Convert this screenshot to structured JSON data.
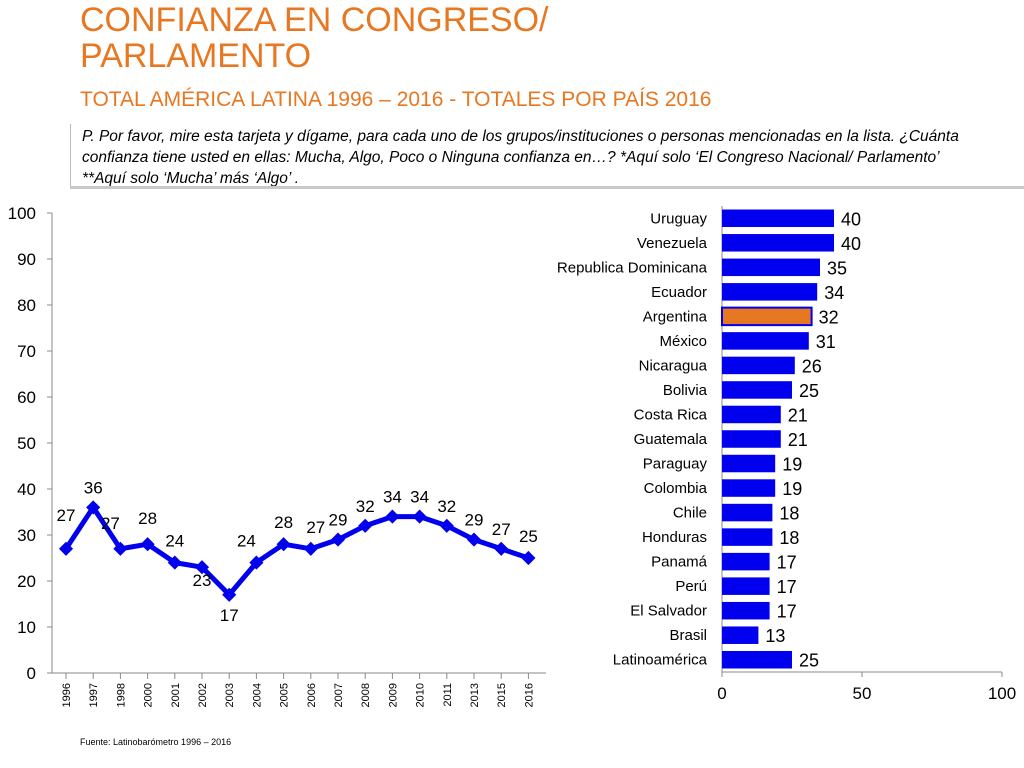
{
  "header": {
    "title_line1": "CONFIANZA EN CONGRESO/",
    "title_line2": "PARLAMENTO",
    "subtitle": "TOTAL AMÉRICA LATINA 1996 – 2016 - TOTALES POR PAÍS 2016",
    "question": "P. Por favor, mire esta tarjeta y dígame, para cada uno de los grupos/instituciones o personas mencionadas en la lista. ¿Cuánta confianza tiene usted en ellas: Mucha, Algo, Poco o Ninguna confianza en…? *Aquí solo ‘El Congreso Nacional/ Parlamento’  **Aquí solo ‘Mucha’ más ‘Algo’ ."
  },
  "footer": {
    "source": "Fuente: Latinobarómetro 1996 – 2016"
  },
  "colors": {
    "title": "#E87722",
    "line": "#0000EE",
    "bar": "#0000EE",
    "highlight_bar": "#E87722"
  },
  "chart_data": [
    {
      "type": "line",
      "title": "",
      "xlabel": "",
      "ylabel": "",
      "ylim": [
        0,
        100
      ],
      "yticks": [
        "0",
        "10",
        "20",
        "30",
        "40",
        "50",
        "60",
        "70",
        "80",
        "90",
        "100"
      ],
      "x": [
        "1996",
        "1997",
        "1998",
        "2000",
        "2001",
        "2002",
        "2003",
        "2004",
        "2005",
        "2006",
        "2007",
        "2008",
        "2009",
        "2010",
        "2011",
        "2013",
        "2015",
        "2016"
      ],
      "series": [
        {
          "name": "Total América Latina",
          "values": [
            27,
            36,
            27,
            28,
            24,
            23,
            17,
            24,
            28,
            27,
            29,
            32,
            34,
            34,
            32,
            29,
            27,
            25
          ]
        }
      ],
      "grid": false
    },
    {
      "type": "bar",
      "orientation": "horizontal",
      "xlim": [
        0,
        100
      ],
      "xticks": [
        "0",
        "50",
        "100"
      ],
      "categories": [
        "Uruguay",
        "Venezuela",
        "Republica Dominicana",
        "Ecuador",
        "Argentina",
        "México",
        "Nicaragua",
        "Bolivia",
        "Costa Rica",
        "Guatemala",
        "Paraguay",
        "Colombia",
        "Chile",
        "Honduras",
        "Panamá",
        "Perú",
        "El Salvador",
        "Brasil",
        "Latinoamérica"
      ],
      "values": [
        40,
        40,
        35,
        34,
        32,
        31,
        26,
        25,
        21,
        21,
        19,
        19,
        18,
        18,
        17,
        17,
        17,
        13,
        25
      ],
      "highlight": "Argentina",
      "grid": false
    }
  ]
}
